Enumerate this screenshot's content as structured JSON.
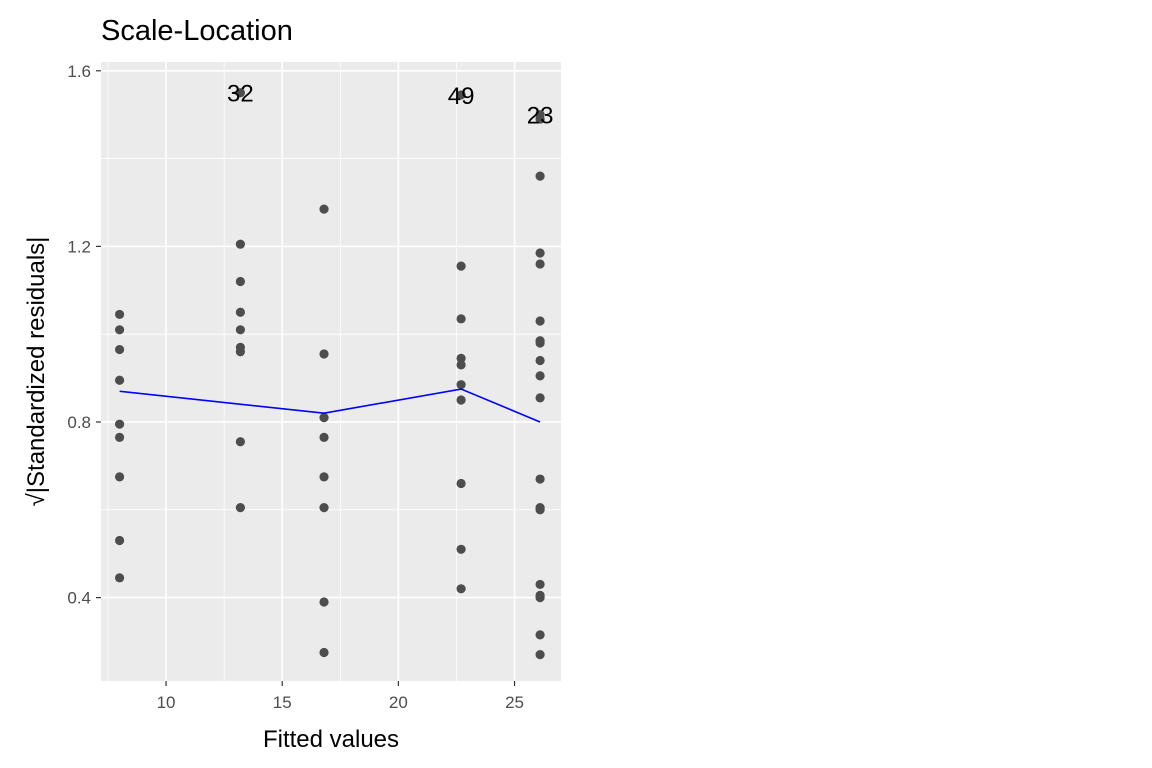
{
  "chart_data": {
    "type": "scatter",
    "title": "Scale-Location",
    "xlabel": "Fitted values",
    "ylabel": "Standardized residuals",
    "ylabel_prefix": "√|",
    "ylabel_suffix": "|",
    "xlim": [
      7.2,
      27.0
    ],
    "ylim": [
      0.21,
      1.62
    ],
    "x_ticks": [
      10,
      15,
      20,
      25
    ],
    "y_ticks": [
      0.4,
      0.8,
      1.2,
      1.6
    ],
    "x_tick_labels": [
      "10",
      "15",
      "20",
      "25"
    ],
    "y_tick_labels": [
      "0.4",
      "0.8",
      "1.2",
      "1.6"
    ],
    "grid": true,
    "colors": {
      "panel": "#ebebeb",
      "grid": "#ffffff",
      "points": "#4d4d4d",
      "smooth": "#0000ff"
    },
    "points": [
      {
        "x": 8.0,
        "y": 1.045
      },
      {
        "x": 8.0,
        "y": 1.01
      },
      {
        "x": 8.0,
        "y": 0.965
      },
      {
        "x": 8.0,
        "y": 0.895
      },
      {
        "x": 8.0,
        "y": 0.795
      },
      {
        "x": 8.0,
        "y": 0.765
      },
      {
        "x": 8.0,
        "y": 0.675
      },
      {
        "x": 8.0,
        "y": 0.53
      },
      {
        "x": 8.0,
        "y": 0.445
      },
      {
        "x": 13.2,
        "y": 1.55
      },
      {
        "x": 13.2,
        "y": 1.205
      },
      {
        "x": 13.2,
        "y": 1.12
      },
      {
        "x": 13.2,
        "y": 1.05
      },
      {
        "x": 13.2,
        "y": 1.01
      },
      {
        "x": 13.2,
        "y": 0.97
      },
      {
        "x": 13.2,
        "y": 0.96
      },
      {
        "x": 13.2,
        "y": 0.755
      },
      {
        "x": 13.2,
        "y": 0.605
      },
      {
        "x": 16.8,
        "y": 1.285
      },
      {
        "x": 16.8,
        "y": 0.955
      },
      {
        "x": 16.8,
        "y": 0.81
      },
      {
        "x": 16.8,
        "y": 0.765
      },
      {
        "x": 16.8,
        "y": 0.675
      },
      {
        "x": 16.8,
        "y": 0.605
      },
      {
        "x": 16.8,
        "y": 0.39
      },
      {
        "x": 16.8,
        "y": 0.275
      },
      {
        "x": 22.7,
        "y": 1.545
      },
      {
        "x": 22.7,
        "y": 1.155
      },
      {
        "x": 22.7,
        "y": 1.035
      },
      {
        "x": 22.7,
        "y": 0.945
      },
      {
        "x": 22.7,
        "y": 0.93
      },
      {
        "x": 22.7,
        "y": 0.885
      },
      {
        "x": 22.7,
        "y": 0.85
      },
      {
        "x": 22.7,
        "y": 0.66
      },
      {
        "x": 22.7,
        "y": 0.51
      },
      {
        "x": 22.7,
        "y": 0.42
      },
      {
        "x": 26.1,
        "y": 1.5
      },
      {
        "x": 26.1,
        "y": 1.49
      },
      {
        "x": 26.1,
        "y": 1.36
      },
      {
        "x": 26.1,
        "y": 1.185
      },
      {
        "x": 26.1,
        "y": 1.16
      },
      {
        "x": 26.1,
        "y": 1.03
      },
      {
        "x": 26.1,
        "y": 0.985
      },
      {
        "x": 26.1,
        "y": 0.98
      },
      {
        "x": 26.1,
        "y": 0.94
      },
      {
        "x": 26.1,
        "y": 0.905
      },
      {
        "x": 26.1,
        "y": 0.855
      },
      {
        "x": 26.1,
        "y": 0.67
      },
      {
        "x": 26.1,
        "y": 0.605
      },
      {
        "x": 26.1,
        "y": 0.6
      },
      {
        "x": 26.1,
        "y": 0.43
      },
      {
        "x": 26.1,
        "y": 0.405
      },
      {
        "x": 26.1,
        "y": 0.4
      },
      {
        "x": 26.1,
        "y": 0.315
      },
      {
        "x": 26.1,
        "y": 0.27
      }
    ],
    "smooth_line": [
      {
        "x": 8.0,
        "y": 0.87
      },
      {
        "x": 16.8,
        "y": 0.82
      },
      {
        "x": 22.7,
        "y": 0.875
      },
      {
        "x": 26.1,
        "y": 0.8
      }
    ],
    "point_labels": [
      {
        "text": "32",
        "x": 13.2,
        "y": 1.55
      },
      {
        "text": "49",
        "x": 22.7,
        "y": 1.545
      },
      {
        "text": "23",
        "x": 26.1,
        "y": 1.5
      }
    ]
  }
}
